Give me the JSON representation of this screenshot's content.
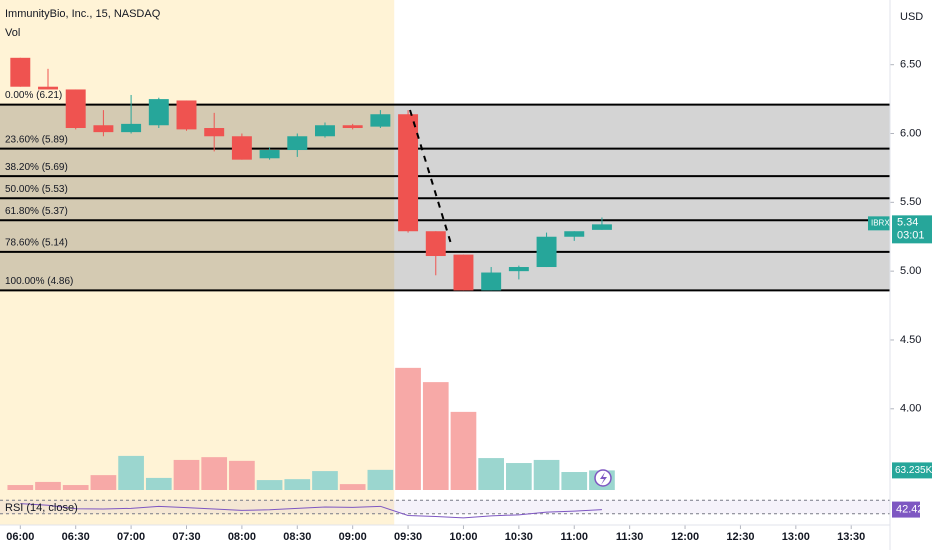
{
  "header": {
    "title": "ImmunityBio, Inc., 15, NASDAQ",
    "volume_label": "Vol",
    "currency": "USD"
  },
  "chart_data": {
    "type": "candlestick",
    "x": [
      "06:00",
      "06:15",
      "06:30",
      "06:45",
      "07:00",
      "07:15",
      "07:30",
      "07:45",
      "08:00",
      "08:15",
      "08:30",
      "08:45",
      "09:00",
      "09:15",
      "09:30",
      "09:45",
      "10:00",
      "10:15",
      "10:30",
      "10:45",
      "11:00",
      "11:15"
    ],
    "open": [
      6.55,
      6.34,
      6.32,
      6.06,
      6.01,
      6.06,
      6.24,
      6.04,
      5.98,
      5.82,
      5.88,
      5.98,
      6.06,
      6.05,
      6.14,
      5.29,
      5.12,
      4.86,
      5.0,
      5.03,
      5.25,
      5.3
    ],
    "high": [
      6.55,
      6.47,
      6.32,
      6.17,
      6.28,
      6.26,
      6.24,
      6.15,
      6.0,
      5.9,
      6.0,
      6.08,
      6.07,
      6.17,
      6.17,
      5.29,
      5.12,
      5.03,
      5.04,
      5.28,
      5.29,
      5.39
    ],
    "low": [
      6.34,
      6.32,
      6.03,
      5.98,
      6.0,
      6.04,
      6.02,
      5.87,
      5.81,
      5.81,
      5.83,
      5.97,
      6.03,
      6.04,
      5.28,
      4.97,
      4.86,
      4.86,
      4.94,
      5.03,
      5.22,
      5.3
    ],
    "close": [
      6.34,
      6.32,
      6.04,
      6.01,
      6.07,
      6.25,
      6.03,
      5.98,
      5.81,
      5.88,
      5.98,
      6.06,
      6.04,
      6.14,
      5.29,
      5.11,
      4.86,
      4.99,
      5.03,
      5.25,
      5.29,
      5.34
    ],
    "up_color": "#26a69a",
    "down_color": "#ef5350",
    "ylim": [
      3.41,
      6.97
    ],
    "yticks": [
      {
        "value": 6.5,
        "label": "6.50"
      },
      {
        "value": 6,
        "label": "6.00"
      },
      {
        "value": 5.5,
        "label": "5.50"
      },
      {
        "value": 5,
        "label": "5.00"
      },
      {
        "value": 4.5,
        "label": "4.50"
      },
      {
        "value": 4,
        "label": "4.00"
      }
    ],
    "xlim": [
      "05:49",
      "13:51"
    ],
    "xticks": [
      "06:00",
      "06:30",
      "07:00",
      "07:30",
      "08:00",
      "08:30",
      "09:00",
      "09:30",
      "10:00",
      "10:30",
      "11:00",
      "11:30",
      "12:00",
      "12:30",
      "13:00",
      "13:30"
    ],
    "premarket_end": "09:30",
    "premarket_color": "#fff3d6",
    "last_price": {
      "symbol": "IBRX",
      "value": 5.34,
      "countdown": "03:01"
    },
    "fib_levels": [
      {
        "label": "0.00% (6.21)",
        "price": 6.21
      },
      {
        "label": "23.60% (5.89)",
        "price": 5.89
      },
      {
        "label": "38.20% (5.69)",
        "price": 5.69
      },
      {
        "label": "50.00% (5.53)",
        "price": 5.53
      },
      {
        "label": "61.80% (5.37)",
        "price": 5.37
      },
      {
        "label": "78.60% (5.14)",
        "price": 5.14
      },
      {
        "label": "100.00% (4.86)",
        "price": 4.86
      }
    ],
    "volume": {
      "name": "Vol",
      "values": [
        16000,
        26000,
        16000,
        48000,
        110000,
        39000,
        97000,
        106000,
        94000,
        32000,
        35000,
        61000,
        19000,
        65000,
        394000,
        348000,
        252000,
        103000,
        87000,
        97000,
        58000,
        63235
      ],
      "ylim": [
        0,
        500000
      ],
      "last_label": "63.235K",
      "up_color": "#9bd6cf",
      "down_color": "#f7a9a7"
    },
    "rsi": {
      "name": "RSI (14, close)",
      "values": [
        60,
        55,
        45,
        44,
        46,
        52,
        48,
        44,
        40,
        42,
        46,
        50,
        49,
        52,
        25,
        22,
        18,
        24,
        27,
        35,
        38,
        42.42
      ],
      "ylim": [
        0,
        100
      ],
      "bands": [
        30,
        70
      ],
      "color": "#7e57c2"
    }
  }
}
